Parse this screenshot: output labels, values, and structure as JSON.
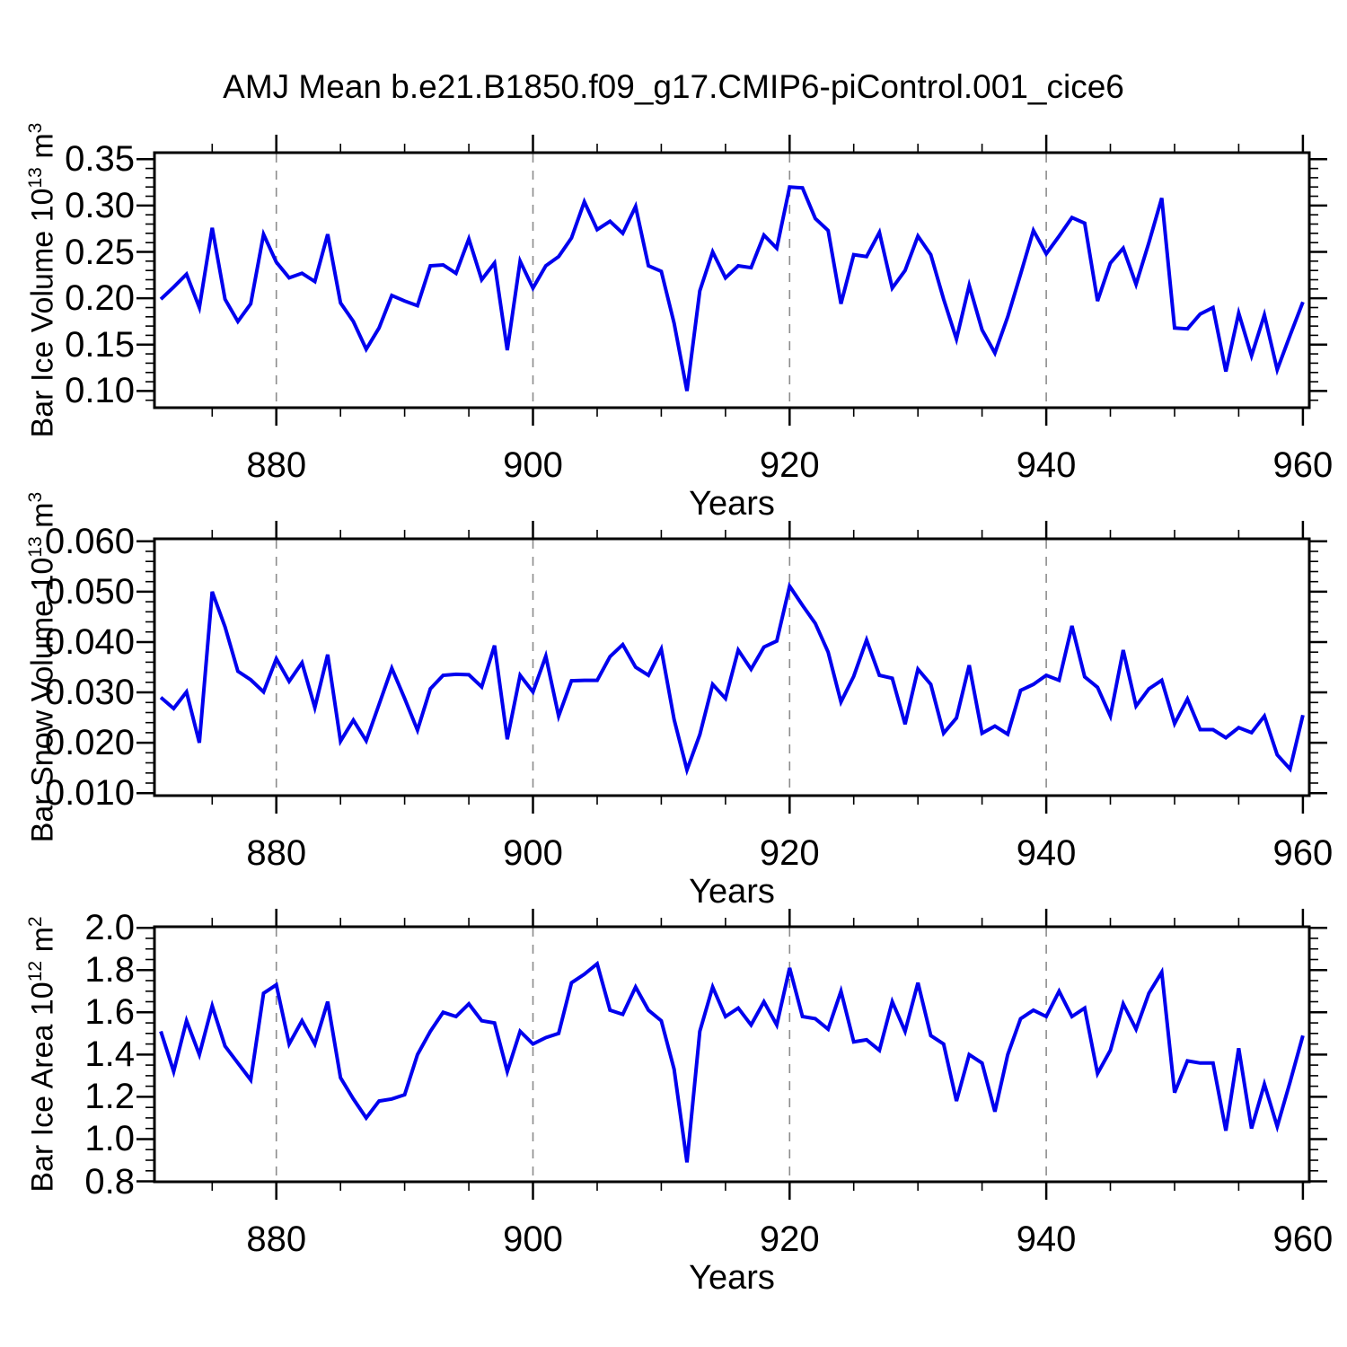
{
  "figure": {
    "title": "AMJ Mean b.e21.B1850.f09_g17.CMIP6-piControl.001_cice6",
    "background": "#ffffff",
    "axis_color": "#000000",
    "grid_color": "#8c8c8c",
    "accent_line_color": "#0000ee"
  },
  "chart_data": [
    {
      "type": "line",
      "panel": "bar-ice-volume",
      "title": "",
      "xlabel": "Years",
      "ylabel": "Bar Ice Volume 10^{13} m^{3}",
      "legend_position": "none",
      "grid": "vertical-dashed",
      "line_color": "#0000ee",
      "line_width": 4,
      "xlim": [
        870.5,
        960.5
      ],
      "ylim": [
        0.082,
        0.357
      ],
      "xticks": [
        880,
        900,
        920,
        940,
        960
      ],
      "xtick_labels": [
        "880",
        "900",
        "920",
        "940",
        "960"
      ],
      "x_minor_step": 5,
      "grid_x": [
        880,
        900,
        920,
        940
      ],
      "yticks": [
        0.1,
        0.15,
        0.2,
        0.25,
        0.3,
        0.35
      ],
      "ytick_labels": [
        "0.10",
        "0.15",
        "0.20",
        "0.25",
        "0.30",
        "0.35"
      ],
      "y_minor_step": 0.01,
      "x_start": 871,
      "x_step": 1,
      "values": [
        0.199,
        0.212,
        0.226,
        0.19,
        0.276,
        0.199,
        0.175,
        0.194,
        0.269,
        0.239,
        0.222,
        0.227,
        0.218,
        0.269,
        0.195,
        0.175,
        0.145,
        0.168,
        0.203,
        0.197,
        0.192,
        0.235,
        0.236,
        0.227,
        0.264,
        0.22,
        0.238,
        0.144,
        0.24,
        0.211,
        0.235,
        0.245,
        0.265,
        0.304,
        0.274,
        0.283,
        0.27,
        0.299,
        0.235,
        0.229,
        0.173,
        0.1,
        0.208,
        0.25,
        0.222,
        0.235,
        0.233,
        0.268,
        0.254,
        0.32,
        0.319,
        0.286,
        0.273,
        0.194,
        0.247,
        0.245,
        0.271,
        0.211,
        0.23,
        0.267,
        0.247,
        0.199,
        0.156,
        0.214,
        0.166,
        0.141,
        0.18,
        0.226,
        0.273,
        0.248,
        0.267,
        0.287,
        0.281,
        0.197,
        0.238,
        0.254,
        0.215,
        0.26,
        0.308,
        0.168,
        0.167,
        0.183,
        0.19,
        0.121,
        0.184,
        0.138,
        0.182,
        0.123,
        0.16,
        0.196
      ]
    },
    {
      "type": "line",
      "panel": "bar-snow-volume",
      "title": "",
      "xlabel": "Years",
      "ylabel": "Bar Snow Volume 10^{13} m^{3}",
      "legend_position": "none",
      "grid": "vertical-dashed",
      "line_color": "#0000ee",
      "line_width": 4,
      "xlim": [
        870.5,
        960.5
      ],
      "ylim": [
        0.0095,
        0.0605
      ],
      "xticks": [
        880,
        900,
        920,
        940,
        960
      ],
      "xtick_labels": [
        "880",
        "900",
        "920",
        "940",
        "960"
      ],
      "x_minor_step": 5,
      "grid_x": [
        880,
        900,
        920,
        940
      ],
      "yticks": [
        0.01,
        0.02,
        0.03,
        0.04,
        0.05,
        0.06
      ],
      "ytick_labels": [
        "0.010",
        "0.020",
        "0.030",
        "0.040",
        "0.050",
        "0.060"
      ],
      "y_minor_step": 0.002,
      "x_start": 871,
      "x_step": 1,
      "values": [
        0.029,
        0.0268,
        0.0301,
        0.02,
        0.05,
        0.043,
        0.0342,
        0.0325,
        0.0301,
        0.0367,
        0.0322,
        0.0359,
        0.027,
        0.0375,
        0.0203,
        0.0245,
        0.0204,
        0.0276,
        0.0348,
        0.0288,
        0.0225,
        0.0307,
        0.0334,
        0.0336,
        0.0335,
        0.0311,
        0.0393,
        0.0207,
        0.0334,
        0.0301,
        0.0372,
        0.0253,
        0.0323,
        0.0324,
        0.0324,
        0.0371,
        0.0395,
        0.035,
        0.0334,
        0.0386,
        0.0246,
        0.0146,
        0.0216,
        0.0316,
        0.0288,
        0.0384,
        0.0346,
        0.039,
        0.0402,
        0.0511,
        0.0473,
        0.0437,
        0.038,
        0.0281,
        0.0332,
        0.0404,
        0.0334,
        0.0328,
        0.0237,
        0.0346,
        0.0316,
        0.0219,
        0.0249,
        0.0354,
        0.0219,
        0.0233,
        0.0217,
        0.0304,
        0.0316,
        0.0334,
        0.0324,
        0.0432,
        0.0331,
        0.031,
        0.0253,
        0.0384,
        0.0273,
        0.0307,
        0.0324,
        0.0238,
        0.0287,
        0.0226,
        0.0226,
        0.021,
        0.023,
        0.022,
        0.0253,
        0.0176,
        0.0148,
        0.0255
      ]
    },
    {
      "type": "line",
      "panel": "bar-ice-area",
      "title": "",
      "xlabel": "Years",
      "ylabel": "Bar Ice Area 10^{12} m^{2}",
      "legend_position": "none",
      "grid": "vertical-dashed",
      "line_color": "#0000ee",
      "line_width": 4,
      "xlim": [
        870.5,
        960.5
      ],
      "ylim": [
        0.798,
        2.005
      ],
      "xticks": [
        880,
        900,
        920,
        940,
        960
      ],
      "xtick_labels": [
        "880",
        "900",
        "920",
        "940",
        "960"
      ],
      "x_minor_step": 5,
      "grid_x": [
        880,
        900,
        920,
        940
      ],
      "yticks": [
        0.8,
        1.0,
        1.2,
        1.4,
        1.6,
        1.8,
        2.0
      ],
      "ytick_labels": [
        "0.8",
        "1.0",
        "1.2",
        "1.4",
        "1.6",
        "1.8",
        "2.0"
      ],
      "y_minor_step": 0.05,
      "x_start": 871,
      "x_step": 1,
      "values": [
        1.51,
        1.32,
        1.56,
        1.4,
        1.63,
        1.44,
        1.36,
        1.28,
        1.69,
        1.73,
        1.45,
        1.56,
        1.45,
        1.65,
        1.29,
        1.19,
        1.1,
        1.18,
        1.19,
        1.21,
        1.4,
        1.51,
        1.6,
        1.58,
        1.64,
        1.56,
        1.55,
        1.32,
        1.51,
        1.45,
        1.48,
        1.5,
        1.74,
        1.78,
        1.83,
        1.61,
        1.59,
        1.72,
        1.61,
        1.56,
        1.33,
        0.89,
        1.51,
        1.72,
        1.58,
        1.62,
        1.54,
        1.65,
        1.54,
        1.81,
        1.58,
        1.57,
        1.52,
        1.7,
        1.46,
        1.47,
        1.42,
        1.65,
        1.51,
        1.74,
        1.49,
        1.45,
        1.18,
        1.4,
        1.36,
        1.13,
        1.4,
        1.57,
        1.61,
        1.58,
        1.7,
        1.58,
        1.62,
        1.31,
        1.42,
        1.64,
        1.52,
        1.69,
        1.79,
        1.22,
        1.37,
        1.36,
        1.36,
        1.04,
        1.43,
        1.05,
        1.26,
        1.06,
        1.27,
        1.49
      ]
    }
  ]
}
